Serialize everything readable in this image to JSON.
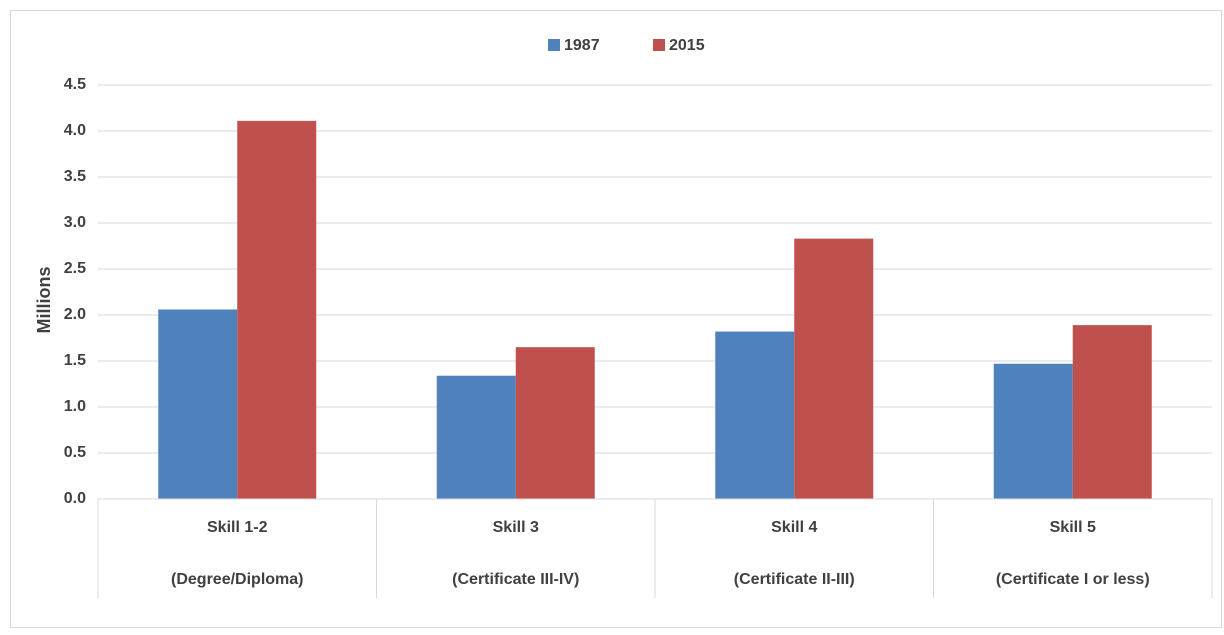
{
  "chart_data": {
    "type": "bar",
    "y_label": "Millions",
    "categories": [
      [
        "Skill 1-2",
        "(Degree/Diploma)"
      ],
      [
        "Skill 3",
        "(Certificate III-IV)"
      ],
      [
        "Skill 4",
        "(Certificate II-III)"
      ],
      [
        "Skill 5",
        "(Certificate I or less)"
      ]
    ],
    "series": [
      {
        "name": "1987",
        "color": "#4f81bd",
        "values": [
          2.06,
          1.34,
          1.82,
          1.47
        ]
      },
      {
        "name": "2015",
        "color": "#c0504d",
        "values": [
          4.11,
          1.65,
          2.83,
          1.89
        ]
      }
    ],
    "ylim": [
      0,
      4.5
    ],
    "yticks": [
      {
        "value": 0,
        "label": "0.0"
      },
      0.5,
      {
        "value": 1,
        "label": "1.0"
      },
      1.5,
      {
        "value": 2,
        "label": "2.0"
      },
      2.5,
      {
        "value": 3,
        "label": "3.0"
      },
      3.5,
      {
        "value": 4,
        "label": "4.0"
      },
      4.5
    ],
    "grid": true,
    "legend": "top"
  }
}
